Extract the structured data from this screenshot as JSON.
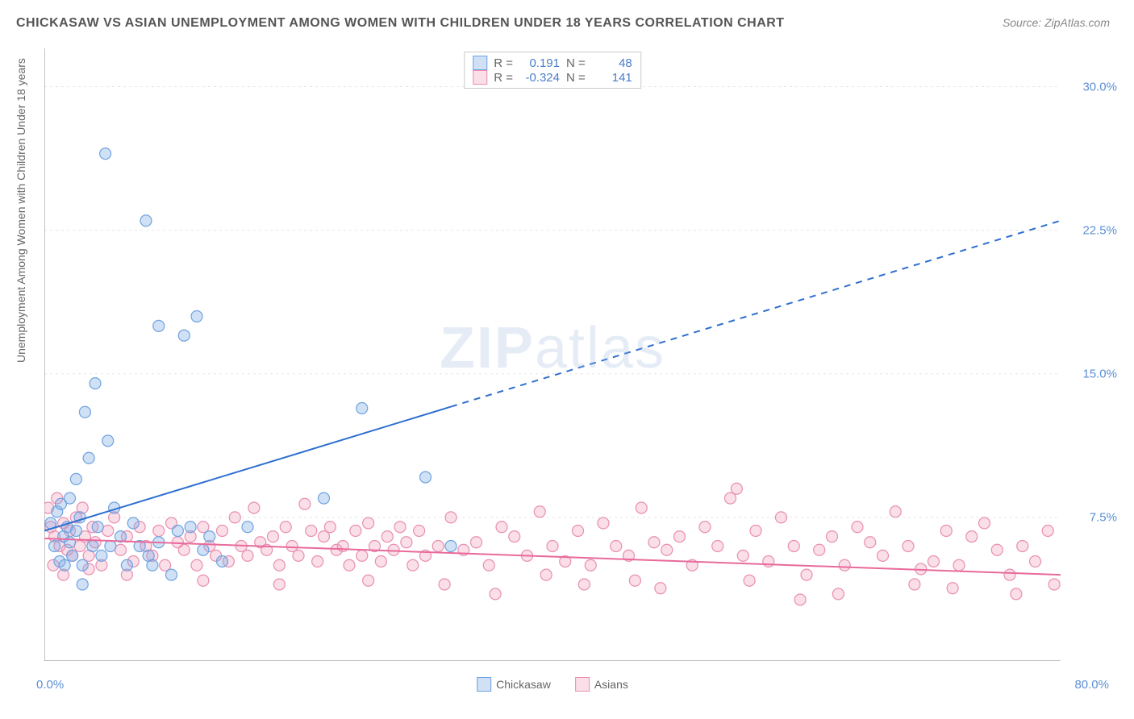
{
  "title": "CHICKASAW VS ASIAN UNEMPLOYMENT AMONG WOMEN WITH CHILDREN UNDER 18 YEARS CORRELATION CHART",
  "source": "Source: ZipAtlas.com",
  "ylabel": "Unemployment Among Women with Children Under 18 years",
  "watermark_bold": "ZIP",
  "watermark_light": "atlas",
  "chart": {
    "type": "scatter",
    "background_color": "#ffffff",
    "grid_color": "#e5e5e5",
    "axis_color": "#888888",
    "tick_color": "#aaaaaa",
    "xlim": [
      0,
      80
    ],
    "ylim": [
      0,
      32
    ],
    "x_label_min": "0.0%",
    "x_label_max": "80.0%",
    "y_ticks": [
      7.5,
      15.0,
      22.5,
      30.0
    ],
    "y_tick_labels": [
      "7.5%",
      "15.0%",
      "22.5%",
      "30.0%"
    ],
    "x_ticks": [
      10,
      20,
      30,
      40,
      50,
      60,
      70,
      80
    ],
    "marker_radius": 7,
    "marker_stroke_width": 1.2,
    "line_width": 2,
    "series": [
      {
        "name": "Chickasaw",
        "fill": "rgba(120,170,230,0.35)",
        "stroke": "#6fa3e0",
        "line_color": "#2e6fd1",
        "r_value": "0.191",
        "n_value": "48",
        "trend": {
          "x1": 0,
          "y1": 6.8,
          "x2": 80,
          "y2": 23.0,
          "solid_until_x": 32
        },
        "points": [
          [
            0.5,
            7.2
          ],
          [
            0.8,
            6.0
          ],
          [
            1.0,
            7.8
          ],
          [
            1.2,
            5.2
          ],
          [
            1.3,
            8.2
          ],
          [
            1.5,
            6.5
          ],
          [
            1.6,
            5.0
          ],
          [
            1.8,
            7.0
          ],
          [
            2.0,
            8.5
          ],
          [
            2.0,
            6.2
          ],
          [
            2.2,
            5.5
          ],
          [
            2.5,
            9.5
          ],
          [
            2.5,
            6.8
          ],
          [
            2.8,
            7.5
          ],
          [
            3.0,
            5.0
          ],
          [
            3.0,
            4.0
          ],
          [
            3.2,
            13.0
          ],
          [
            3.5,
            10.6
          ],
          [
            3.8,
            6.0
          ],
          [
            4.0,
            14.5
          ],
          [
            4.2,
            7.0
          ],
          [
            4.5,
            5.5
          ],
          [
            4.8,
            26.5
          ],
          [
            5.0,
            11.5
          ],
          [
            5.2,
            6.0
          ],
          [
            5.5,
            8.0
          ],
          [
            6.0,
            6.5
          ],
          [
            6.5,
            5.0
          ],
          [
            7.0,
            7.2
          ],
          [
            7.5,
            6.0
          ],
          [
            8.0,
            23.0
          ],
          [
            8.2,
            5.5
          ],
          [
            8.5,
            5.0
          ],
          [
            9.0,
            17.5
          ],
          [
            9.0,
            6.2
          ],
          [
            10.0,
            4.5
          ],
          [
            10.5,
            6.8
          ],
          [
            11.0,
            17.0
          ],
          [
            11.5,
            7.0
          ],
          [
            12.0,
            18.0
          ],
          [
            12.5,
            5.8
          ],
          [
            13.0,
            6.5
          ],
          [
            14.0,
            5.2
          ],
          [
            16.0,
            7.0
          ],
          [
            22.0,
            8.5
          ],
          [
            25.0,
            13.2
          ],
          [
            30.0,
            9.6
          ],
          [
            32.0,
            6.0
          ]
        ]
      },
      {
        "name": "Asians",
        "fill": "rgba(240,160,190,0.35)",
        "stroke": "#e98fb0",
        "line_color": "#e86a9a",
        "r_value": "-0.324",
        "n_value": "141",
        "trend": {
          "x1": 0,
          "y1": 6.4,
          "x2": 80,
          "y2": 4.5,
          "solid_until_x": 80
        },
        "points": [
          [
            0.3,
            8.0
          ],
          [
            0.5,
            7.0
          ],
          [
            0.8,
            6.5
          ],
          [
            1.0,
            8.5
          ],
          [
            1.2,
            6.0
          ],
          [
            1.5,
            7.2
          ],
          [
            1.8,
            5.8
          ],
          [
            2.0,
            6.8
          ],
          [
            2.2,
            5.5
          ],
          [
            2.5,
            7.5
          ],
          [
            2.8,
            6.0
          ],
          [
            3.0,
            8.0
          ],
          [
            3.2,
            6.5
          ],
          [
            3.5,
            5.5
          ],
          [
            3.8,
            7.0
          ],
          [
            4.0,
            6.2
          ],
          [
            4.5,
            5.0
          ],
          [
            5.0,
            6.8
          ],
          [
            5.5,
            7.5
          ],
          [
            6.0,
            5.8
          ],
          [
            6.5,
            6.5
          ],
          [
            7.0,
            5.2
          ],
          [
            7.5,
            7.0
          ],
          [
            8.0,
            6.0
          ],
          [
            8.5,
            5.5
          ],
          [
            9.0,
            6.8
          ],
          [
            9.5,
            5.0
          ],
          [
            10.0,
            7.2
          ],
          [
            10.5,
            6.2
          ],
          [
            11.0,
            5.8
          ],
          [
            11.5,
            6.5
          ],
          [
            12.0,
            5.0
          ],
          [
            12.5,
            7.0
          ],
          [
            13.0,
            6.0
          ],
          [
            13.5,
            5.5
          ],
          [
            14.0,
            6.8
          ],
          [
            14.5,
            5.2
          ],
          [
            15.0,
            7.5
          ],
          [
            15.5,
            6.0
          ],
          [
            16.0,
            5.5
          ],
          [
            16.5,
            8.0
          ],
          [
            17.0,
            6.2
          ],
          [
            17.5,
            5.8
          ],
          [
            18.0,
            6.5
          ],
          [
            18.5,
            5.0
          ],
          [
            19.0,
            7.0
          ],
          [
            19.5,
            6.0
          ],
          [
            20.0,
            5.5
          ],
          [
            20.5,
            8.2
          ],
          [
            21.0,
            6.8
          ],
          [
            21.5,
            5.2
          ],
          [
            22.0,
            6.5
          ],
          [
            22.5,
            7.0
          ],
          [
            23.0,
            5.8
          ],
          [
            23.5,
            6.0
          ],
          [
            24.0,
            5.0
          ],
          [
            24.5,
            6.8
          ],
          [
            25.0,
            5.5
          ],
          [
            25.5,
            7.2
          ],
          [
            26.0,
            6.0
          ],
          [
            26.5,
            5.2
          ],
          [
            27.0,
            6.5
          ],
          [
            27.5,
            5.8
          ],
          [
            28.0,
            7.0
          ],
          [
            28.5,
            6.2
          ],
          [
            29.0,
            5.0
          ],
          [
            29.5,
            6.8
          ],
          [
            30.0,
            5.5
          ],
          [
            31.0,
            6.0
          ],
          [
            32.0,
            7.5
          ],
          [
            33.0,
            5.8
          ],
          [
            34.0,
            6.2
          ],
          [
            35.0,
            5.0
          ],
          [
            36.0,
            7.0
          ],
          [
            37.0,
            6.5
          ],
          [
            38.0,
            5.5
          ],
          [
            39.0,
            7.8
          ],
          [
            40.0,
            6.0
          ],
          [
            41.0,
            5.2
          ],
          [
            42.0,
            6.8
          ],
          [
            43.0,
            5.0
          ],
          [
            44.0,
            7.2
          ],
          [
            45.0,
            6.0
          ],
          [
            46.0,
            5.5
          ],
          [
            47.0,
            8.0
          ],
          [
            48.0,
            6.2
          ],
          [
            49.0,
            5.8
          ],
          [
            50.0,
            6.5
          ],
          [
            51.0,
            5.0
          ],
          [
            52.0,
            7.0
          ],
          [
            53.0,
            6.0
          ],
          [
            54.0,
            8.5
          ],
          [
            55.0,
            5.5
          ],
          [
            56.0,
            6.8
          ],
          [
            57.0,
            5.2
          ],
          [
            58.0,
            7.5
          ],
          [
            59.0,
            6.0
          ],
          [
            60.0,
            4.5
          ],
          [
            61.0,
            5.8
          ],
          [
            62.0,
            6.5
          ],
          [
            63.0,
            5.0
          ],
          [
            64.0,
            7.0
          ],
          [
            65.0,
            6.2
          ],
          [
            66.0,
            5.5
          ],
          [
            67.0,
            7.8
          ],
          [
            68.0,
            6.0
          ],
          [
            69.0,
            4.8
          ],
          [
            70.0,
            5.2
          ],
          [
            71.0,
            6.8
          ],
          [
            72.0,
            5.0
          ],
          [
            73.0,
            6.5
          ],
          [
            74.0,
            7.2
          ],
          [
            75.0,
            5.8
          ],
          [
            76.0,
            4.5
          ],
          [
            77.0,
            6.0
          ],
          [
            78.0,
            5.2
          ],
          [
            79.0,
            6.8
          ],
          [
            79.5,
            4.0
          ],
          [
            35.5,
            3.5
          ],
          [
            42.5,
            4.0
          ],
          [
            48.5,
            3.8
          ],
          [
            55.5,
            4.2
          ],
          [
            62.5,
            3.5
          ],
          [
            68.5,
            4.0
          ],
          [
            54.5,
            9.0
          ],
          [
            46.5,
            4.2
          ],
          [
            39.5,
            4.5
          ],
          [
            31.5,
            4.0
          ],
          [
            25.5,
            4.2
          ],
          [
            18.5,
            4.0
          ],
          [
            12.5,
            4.2
          ],
          [
            6.5,
            4.5
          ],
          [
            3.5,
            4.8
          ],
          [
            1.5,
            4.5
          ],
          [
            0.7,
            5.0
          ],
          [
            59.5,
            3.2
          ],
          [
            71.5,
            3.8
          ],
          [
            76.5,
            3.5
          ]
        ]
      }
    ]
  },
  "stats_labels": {
    "r": "R =",
    "n": "N ="
  }
}
